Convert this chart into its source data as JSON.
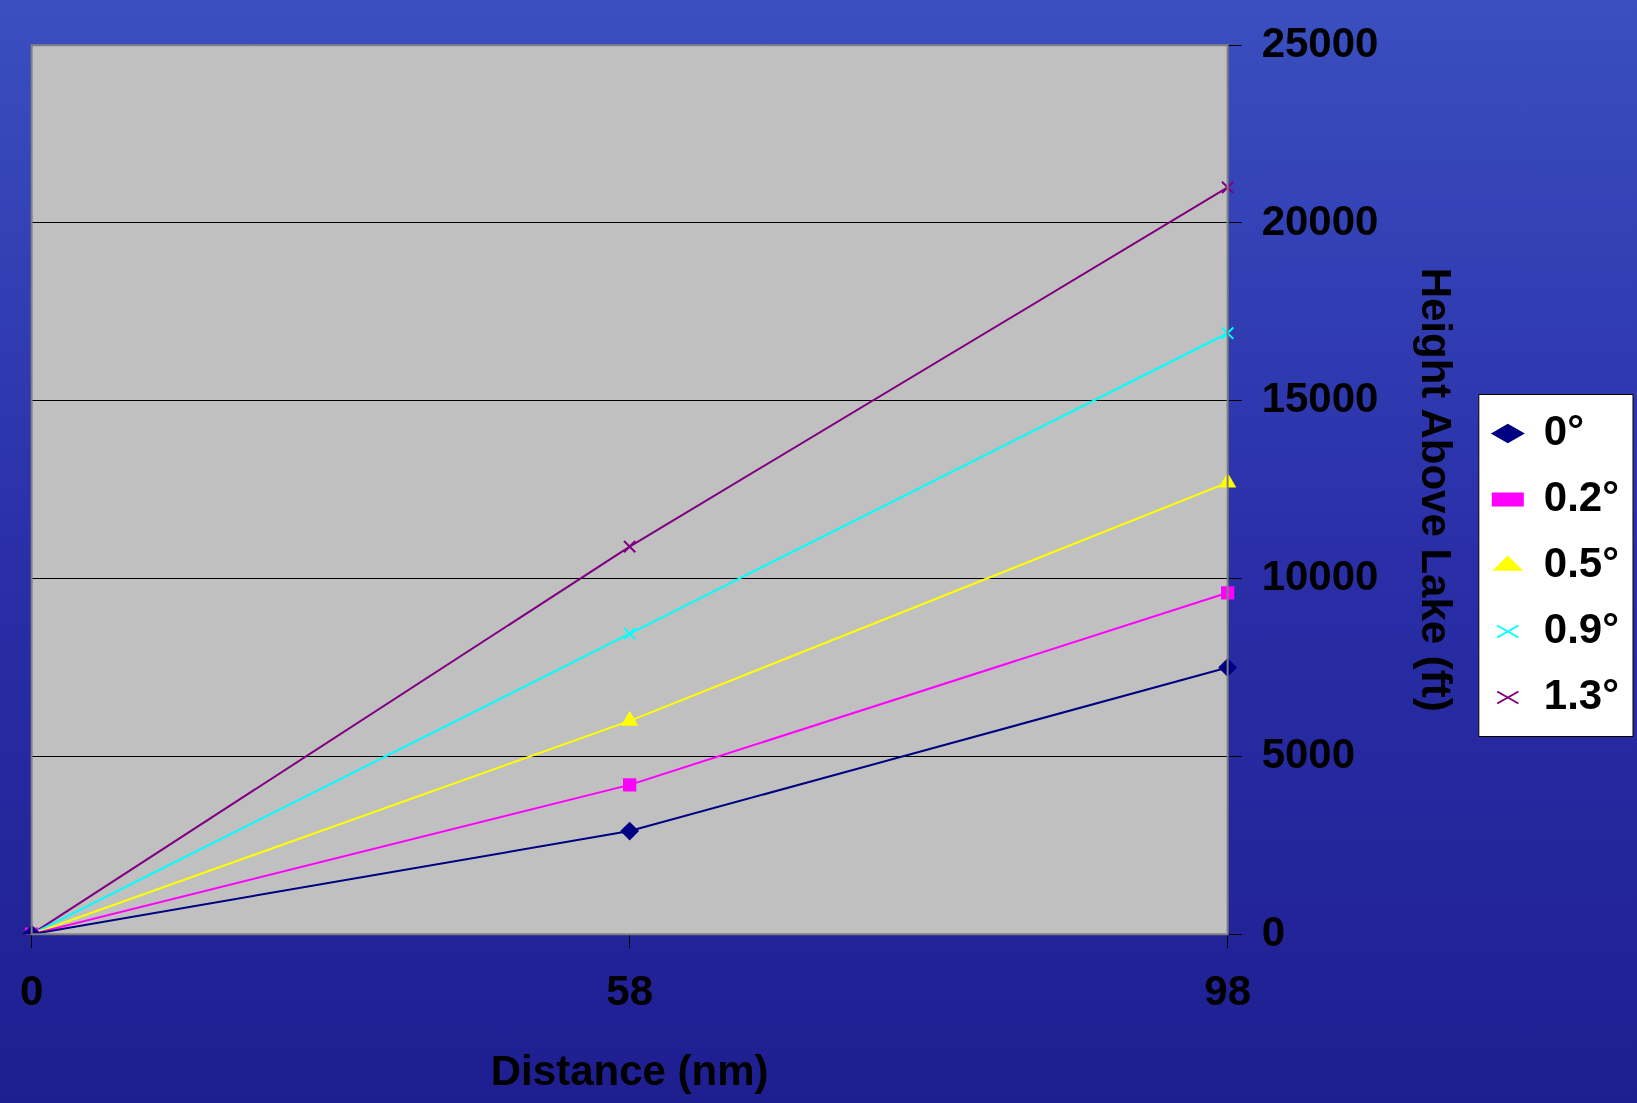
{
  "chart_data": {
    "type": "line",
    "xlabel": "Distance (nm)",
    "ylabel": "Height Above Lake (ft)",
    "categories": [
      "0",
      "58",
      "98"
    ],
    "ylim": [
      0,
      25000
    ],
    "yticks": [
      0,
      5000,
      10000,
      15000,
      20000,
      25000
    ],
    "grid": "y",
    "legend": "right",
    "series": [
      {
        "name": "0°",
        "color": "#000080",
        "marker": "diamond",
        "values": [
          0,
          2900,
          7500
        ]
      },
      {
        "name": "0.2°",
        "color": "#ff00ff",
        "marker": "square",
        "values": [
          0,
          4200,
          9600
        ]
      },
      {
        "name": "0.5°",
        "color": "#ffff00",
        "marker": "triangle",
        "values": [
          0,
          6000,
          12700
        ]
      },
      {
        "name": "0.9°",
        "color": "#00ffff",
        "marker": "cross",
        "values": [
          0,
          8450,
          16900
        ]
      },
      {
        "name": "1.3°",
        "color": "#800080",
        "marker": "cross",
        "values": [
          0,
          10900,
          21000
        ]
      }
    ]
  }
}
